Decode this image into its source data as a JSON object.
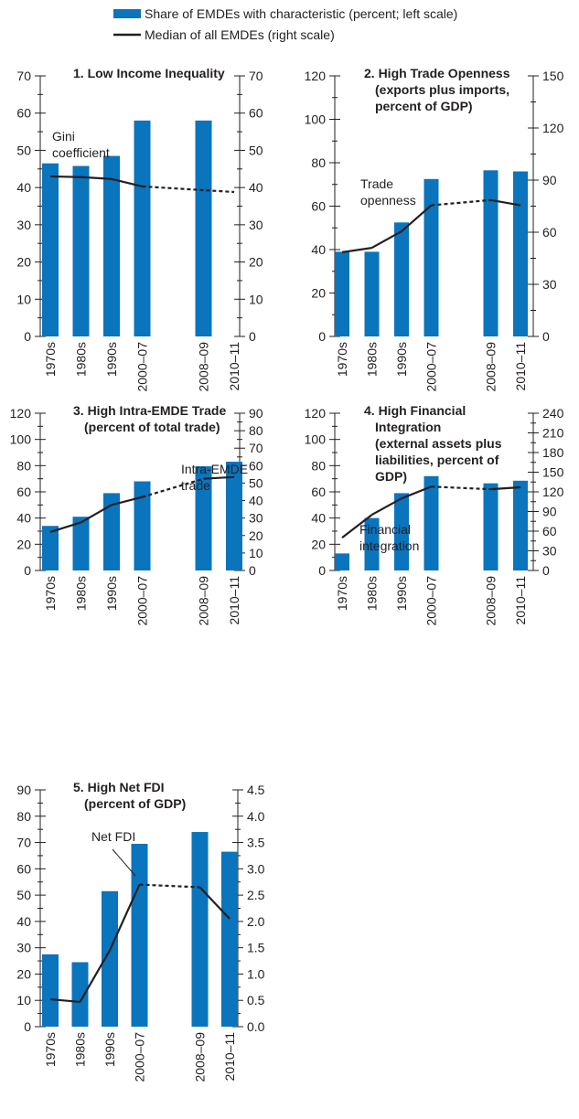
{
  "colors": {
    "bar": "#0a74bd",
    "line": "#231f20",
    "text": "#231f20"
  },
  "legend": {
    "bar_label": "Share of EMDEs with characteristic (percent; left scale)",
    "line_label": "Median of all EMDEs (right scale)"
  },
  "chart_data": [
    {
      "type": "bar",
      "title": [
        "1. Low Income Inequality"
      ],
      "categories": [
        "1970s",
        "1980s",
        "1990s",
        "2000–07",
        "2008–09",
        "2010–11"
      ],
      "series": [
        {
          "name": "Share of EMDEs with characteristic (percent; left scale)",
          "axis": "left",
          "values": [
            46.5,
            45.8,
            48.5,
            58,
            58,
            null
          ]
        },
        {
          "name": "Median of all EMDEs (right scale)",
          "axis": "right",
          "type": "line",
          "values": [
            43,
            42.8,
            42.3,
            40.3,
            null,
            38.8
          ],
          "dashed_from": 3
        }
      ],
      "ylim_left": [
        0,
        70
      ],
      "left_ticks": [
        0,
        10,
        20,
        30,
        40,
        50,
        60,
        70
      ],
      "ylim_right": [
        0,
        70
      ],
      "right_ticks": [
        0,
        10,
        20,
        30,
        40,
        50,
        60,
        70
      ],
      "annotation": [
        "Gini",
        "coefficient"
      ]
    },
    {
      "type": "bar",
      "title": [
        "2. High Trade Openness",
        "(exports plus imports,",
        "percent of GDP)"
      ],
      "categories": [
        "1970s",
        "1980s",
        "1990s",
        "2000–07",
        "2008–09",
        "2010–11"
      ],
      "series": [
        {
          "name": "Share of EMDEs with characteristic (percent; left scale)",
          "axis": "left",
          "values": [
            39,
            39,
            52.5,
            72.5,
            76.5,
            76
          ]
        },
        {
          "name": "Median of all EMDEs (right scale)",
          "axis": "right",
          "type": "line",
          "values": [
            48.5,
            51,
            60.5,
            75.5,
            78.5,
            75.5
          ],
          "dashed_from": 3,
          "dashed_to": 4
        }
      ],
      "ylim_left": [
        0,
        120
      ],
      "left_ticks": [
        0,
        20,
        40,
        60,
        80,
        100,
        120
      ],
      "ylim_right": [
        0,
        150
      ],
      "right_ticks": [
        0,
        30,
        60,
        90,
        120,
        150
      ],
      "annotation": [
        "Trade",
        "openness"
      ]
    },
    {
      "type": "bar",
      "title": [
        "3. High Intra-EMDE Trade",
        "(percent of total trade)"
      ],
      "categories": [
        "1970s",
        "1980s",
        "1990s",
        "2000–07",
        "2008–09",
        "2010–11"
      ],
      "series": [
        {
          "name": "Share of EMDEs with characteristic (percent; left scale)",
          "axis": "left",
          "values": [
            34,
            41,
            59,
            68,
            79.5,
            83
          ]
        },
        {
          "name": "Median of all EMDEs (right scale)",
          "axis": "right",
          "type": "line",
          "values": [
            22,
            27.5,
            37.5,
            42,
            52.5,
            53.5
          ],
          "dashed_from": 3,
          "dashed_to": 4
        }
      ],
      "ylim_left": [
        0,
        120
      ],
      "left_ticks": [
        0,
        20,
        40,
        60,
        80,
        100,
        120
      ],
      "ylim_right": [
        0,
        90
      ],
      "right_ticks": [
        0,
        10,
        20,
        30,
        40,
        50,
        60,
        70,
        80,
        90
      ],
      "annotation": [
        "Intra-EMDE",
        "trade"
      ]
    },
    {
      "type": "bar",
      "title": [
        "4. High Financial",
        "Integration",
        "(external assets plus",
        "liabilities, percent of",
        "GDP)"
      ],
      "categories": [
        "1970s",
        "1980s",
        "1990s",
        "2000–07",
        "2008–09",
        "2010–11"
      ],
      "series": [
        {
          "name": "Share of EMDEs with characteristic (percent; left scale)",
          "axis": "left",
          "values": [
            13,
            40,
            59,
            72,
            66.5,
            68.5
          ]
        },
        {
          "name": "Median of all EMDEs (right scale)",
          "axis": "right",
          "type": "line",
          "values": [
            50,
            85,
            110,
            128,
            124,
            127
          ],
          "dashed_from": 3,
          "dashed_to": 4
        }
      ],
      "ylim_left": [
        0,
        120
      ],
      "left_ticks": [
        0,
        20,
        40,
        60,
        80,
        100,
        120
      ],
      "ylim_right": [
        0,
        240
      ],
      "right_ticks": [
        0,
        30,
        60,
        90,
        120,
        150,
        180,
        210,
        240
      ],
      "annotation": [
        "Financial",
        "integration"
      ]
    },
    {
      "type": "bar",
      "title": [
        "5. High Net FDI",
        "(percent of GDP)"
      ],
      "categories": [
        "1970s",
        "1980s",
        "1990s",
        "2000–07",
        "2008–09",
        "2010–11"
      ],
      "series": [
        {
          "name": "Share of EMDEs with characteristic (percent; left scale)",
          "axis": "left",
          "values": [
            27.5,
            24.5,
            51.5,
            69.5,
            74,
            66.5
          ]
        },
        {
          "name": "Median of all EMDEs (right scale)",
          "axis": "right",
          "type": "line",
          "values": [
            0.52,
            0.47,
            1.45,
            2.7,
            2.65,
            2.05
          ],
          "dashed_from": 3,
          "dashed_to": 4
        }
      ],
      "ylim_left": [
        0,
        90
      ],
      "left_ticks": [
        0,
        10,
        20,
        30,
        40,
        50,
        60,
        70,
        80,
        90
      ],
      "ylim_right": [
        0,
        4.5
      ],
      "right_ticks": [
        "0.0",
        "0.5",
        "1.0",
        "1.5",
        "2.0",
        "2.5",
        "3.0",
        "3.5",
        "4.0",
        "4.5"
      ],
      "annotation": [
        "Net FDI"
      ]
    }
  ]
}
